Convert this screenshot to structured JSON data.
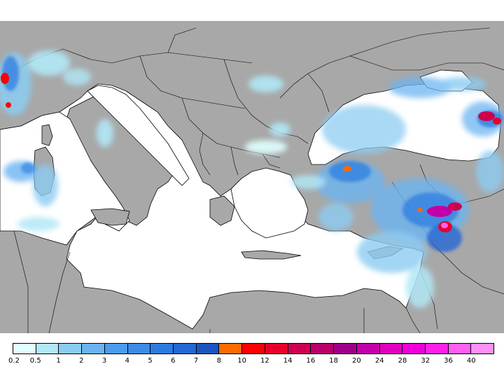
{
  "map": {
    "region": "Eastern Mediterranean / Black Sea",
    "variable": "precipitation",
    "colors": {
      "land": "#a8a8a8",
      "sea": "#ffffff",
      "border": "#000000"
    }
  },
  "legend": {
    "colors": [
      "#e0ffff",
      "#b0e8f6",
      "#8cccf2",
      "#6cb4f0",
      "#4c9cec",
      "#3c8ce8",
      "#2c7ce0",
      "#2468d4",
      "#1c54c0",
      "#ff6a00",
      "#ff0000",
      "#e8002c",
      "#d00050",
      "#b8006c",
      "#a00088",
      "#c400a8",
      "#e000c0",
      "#f000d8",
      "#ff20e8",
      "#ff60f0",
      "#ff90f6"
    ],
    "labels": [
      "0.2",
      "0.5",
      "1",
      "2",
      "3",
      "4",
      "5",
      "6",
      "7",
      "8",
      "10",
      "12",
      "14",
      "16",
      "18",
      "20",
      "24",
      "28",
      "32",
      "36",
      "40"
    ]
  }
}
